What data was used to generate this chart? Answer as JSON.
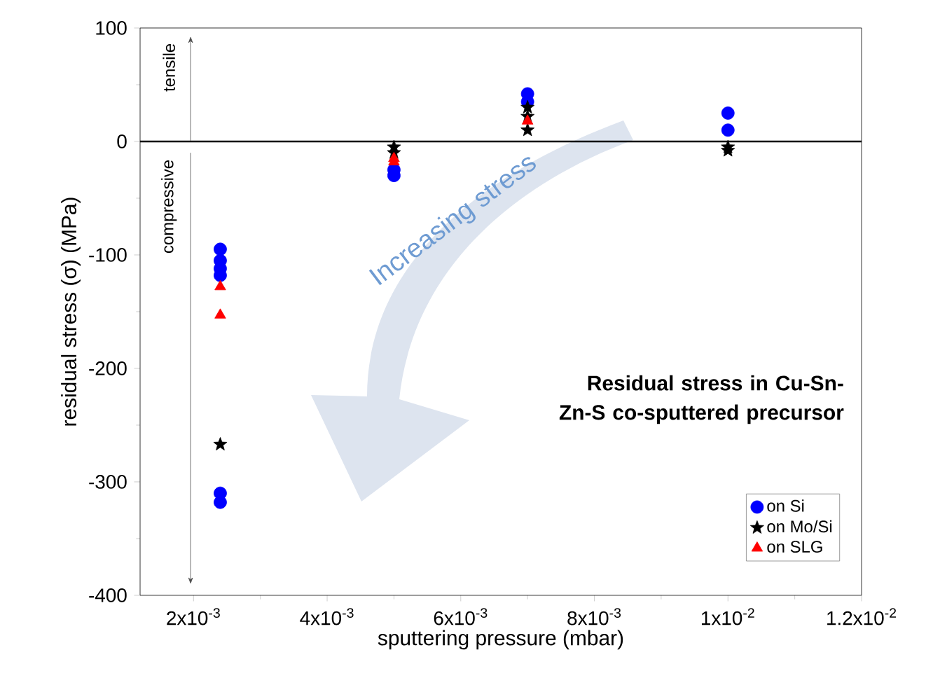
{
  "chart_data": {
    "type": "scatter",
    "title": "Residual stress in Cu-Sn-Zn-S co-sputtered precursor",
    "xlabel": "sputtering pressure (mbar)",
    "ylabel": "residual stress (σ) (MPa)",
    "xlim": [
      0.0012,
      0.012
    ],
    "ylim": [
      -400,
      100
    ],
    "xticks": [
      {
        "value": 0.002,
        "label": "2x10$^{-3}$"
      },
      {
        "value": 0.004,
        "label": "4x10$^{-3}$"
      },
      {
        "value": 0.006,
        "label": "6x10$^{-3}$"
      },
      {
        "value": 0.008,
        "label": "8x10$^{-3}$"
      },
      {
        "value": 0.01,
        "label": "1x10$^{-2}$"
      },
      {
        "value": 0.012,
        "label": "1.2x10$^{-2}$"
      }
    ],
    "yticks": [
      -400,
      -300,
      -200,
      -100,
      0,
      100
    ],
    "grid": false,
    "legend": "bottom right",
    "ref_lines": [
      {
        "axis": "y",
        "value": 0,
        "color": "#000000"
      }
    ],
    "annotations": [
      "tensile",
      "compressive",
      "Increasing stress"
    ],
    "series": [
      {
        "name": "on Si",
        "color": "#0000ff",
        "marker": "circle",
        "x": [
          0.0024,
          0.0024,
          0.0024,
          0.0024,
          0.0024,
          0.0024,
          0.005,
          0.005,
          0.007,
          0.007,
          0.01,
          0.01
        ],
        "values": [
          -95,
          -105,
          -112,
          -118,
          -310,
          -318,
          -30,
          -25,
          42,
          35,
          25,
          10
        ]
      },
      {
        "name": "on Mo/Si",
        "color": "#000000",
        "marker": "star",
        "x": [
          0.0024,
          0.005,
          0.005,
          0.007,
          0.007,
          0.007,
          0.01,
          0.01
        ],
        "values": [
          -267,
          -5,
          -10,
          30,
          22,
          10,
          -8,
          -5
        ]
      },
      {
        "name": "on SLG",
        "color": "#ff0000",
        "marker": "triangle",
        "x": [
          0.0024,
          0.0024,
          0.005,
          0.005,
          0.007
        ],
        "values": [
          -128,
          -153,
          -15,
          -18,
          18
        ]
      }
    ]
  }
}
